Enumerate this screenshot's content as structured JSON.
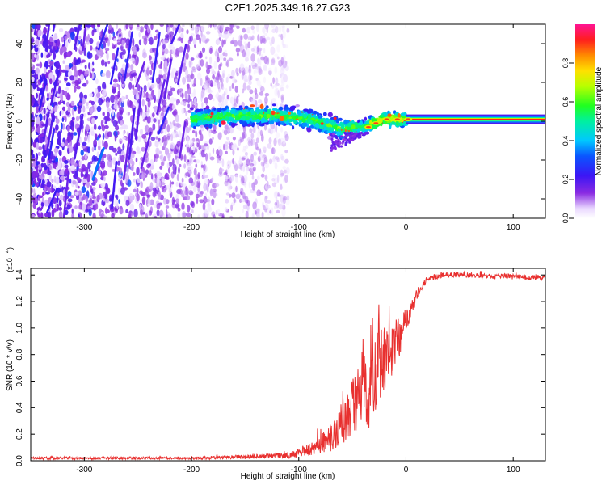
{
  "chart_data": [
    {
      "type": "heatmap",
      "title": "C2E1.2025.349.16.27.G23",
      "xlabel": "Height of straight line (km)",
      "ylabel": "Frequency (Hz)",
      "xlim": [
        -350,
        130
      ],
      "ylim": [
        -50,
        50
      ],
      "xticks": [
        -300,
        -200,
        -100,
        0,
        100
      ],
      "yticks": [
        -40,
        -20,
        0,
        20,
        40
      ],
      "colorbar": {
        "label": "Normalized spectral amplitude",
        "range": [
          0.0,
          1.0
        ],
        "ticks": [
          0.0,
          0.2,
          0.4,
          0.6,
          0.8
        ],
        "tick_labels": [
          "0.0",
          "0.2",
          "0.4",
          "0.6",
          "0.8"
        ]
      },
      "features": {
        "noise_region_x": [
          -350,
          -110
        ],
        "signal_band_x": [
          -200,
          130
        ],
        "signal_band_center_freq": [
          {
            "x": -200,
            "f": 1
          },
          {
            "x": -160,
            "f": 3
          },
          {
            "x": -120,
            "f": 3
          },
          {
            "x": -90,
            "f": 1
          },
          {
            "x": -60,
            "f": -4
          },
          {
            "x": -40,
            "f": -3
          },
          {
            "x": -20,
            "f": 1
          },
          {
            "x": 0,
            "f": 1
          },
          {
            "x": 130,
            "f": 1
          }
        ],
        "peak_amplitude_region_x": [
          0,
          130
        ]
      }
    },
    {
      "type": "line",
      "title": "",
      "xlabel": "Height of straight line (km)",
      "ylabel": "SNR (10 * v/v)",
      "y_scale_label": "(x10^4)",
      "xlim": [
        -350,
        130
      ],
      "ylim": [
        0.0,
        1.45
      ],
      "xticks": [
        -300,
        -200,
        -100,
        0,
        100
      ],
      "yticks": [
        0.0,
        0.2,
        0.4,
        0.6,
        0.8,
        1.0,
        1.2,
        1.4
      ],
      "series": [
        {
          "name": "SNR",
          "color": "#e8302f",
          "x": [
            -350,
            -300,
            -250,
            -200,
            -150,
            -110,
            -100,
            -90,
            -80,
            -70,
            -60,
            -50,
            -45,
            -40,
            -35,
            -30,
            -25,
            -20,
            -15,
            -10,
            -5,
            0,
            5,
            10,
            15,
            20,
            25,
            30,
            35,
            40,
            50,
            60,
            80,
            100,
            120,
            130
          ],
          "y": [
            0.02,
            0.02,
            0.02,
            0.02,
            0.03,
            0.04,
            0.06,
            0.09,
            0.12,
            0.18,
            0.28,
            0.4,
            0.45,
            0.55,
            0.55,
            0.65,
            0.72,
            0.78,
            0.8,
            0.88,
            0.95,
            1.05,
            1.15,
            1.25,
            1.32,
            1.36,
            1.38,
            1.39,
            1.4,
            1.4,
            1.4,
            1.4,
            1.39,
            1.39,
            1.38,
            1.38
          ],
          "noise_amplitude": [
            0.01,
            0.01,
            0.01,
            0.01,
            0.015,
            0.02,
            0.03,
            0.05,
            0.08,
            0.12,
            0.18,
            0.22,
            0.28,
            0.35,
            0.35,
            0.3,
            0.28,
            0.25,
            0.22,
            0.18,
            0.15,
            0.1,
            0.06,
            0.04,
            0.03,
            0.02,
            0.02,
            0.02,
            0.02,
            0.02,
            0.02,
            0.02,
            0.02,
            0.02,
            0.02,
            0.02
          ]
        }
      ]
    }
  ],
  "colors": {
    "snr_line": "#e8302f",
    "axes": "#000000",
    "background": "#ffffff"
  }
}
